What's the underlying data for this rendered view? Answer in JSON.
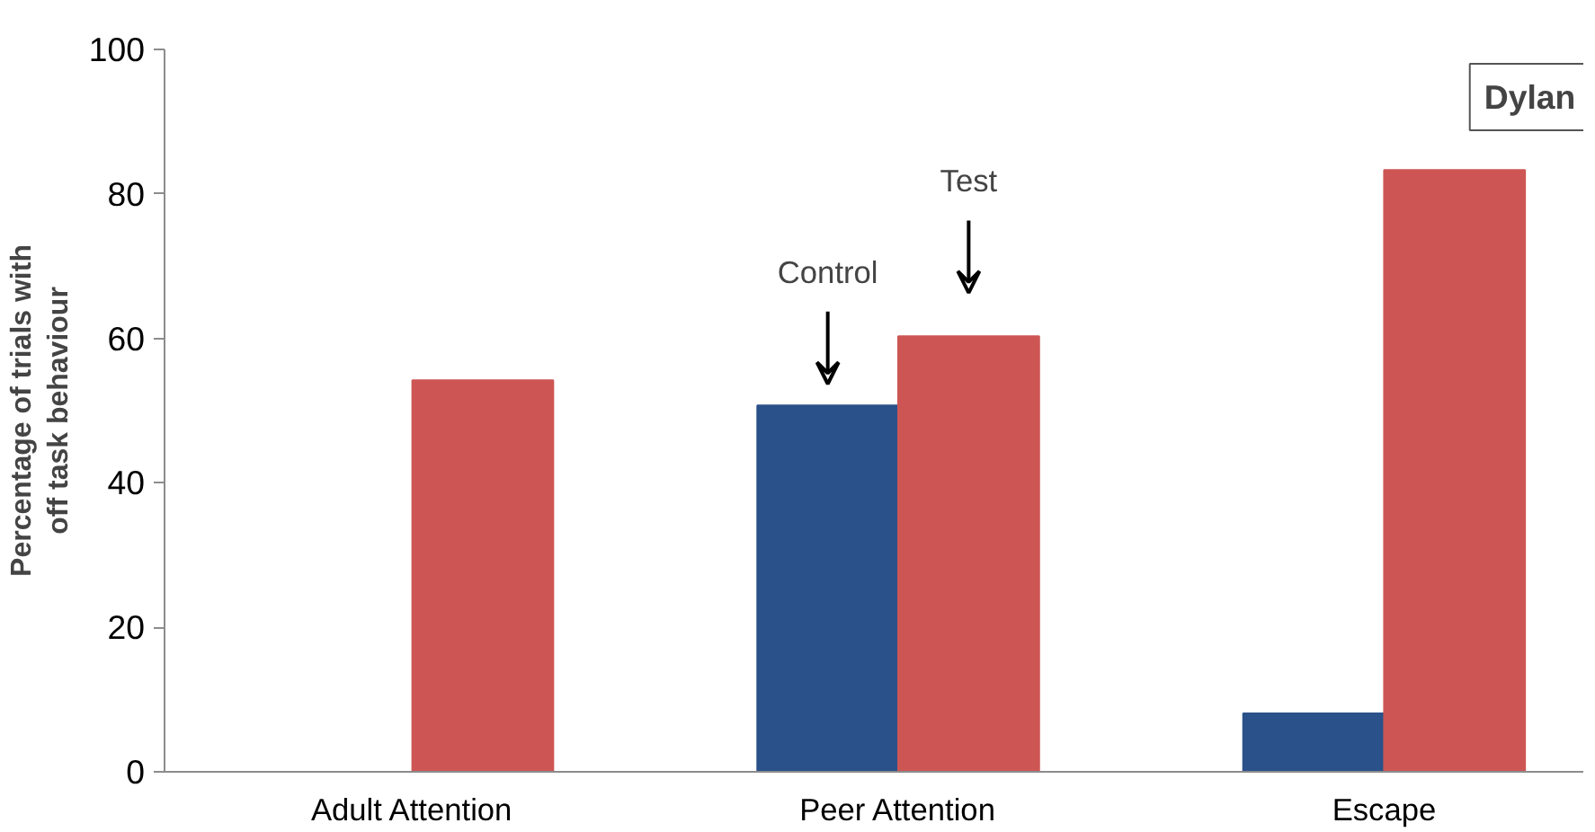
{
  "chart_data": {
    "type": "bar",
    "ylabel": "Percentage of trials with\noff task behaviour",
    "categories": [
      "Adult Attention",
      "Peer Attention",
      "Escape"
    ],
    "series": [
      {
        "color": "#2a5189",
        "values": [
          null,
          50.7,
          8.1
        ]
      },
      {
        "color": "#cd5654",
        "values": [
          54.2,
          60.3,
          83.3
        ]
      }
    ],
    "ylim": [
      0,
      100
    ],
    "yticks": [
      0,
      20,
      40,
      60,
      80,
      100
    ],
    "grid": false,
    "annotations": [
      "Control",
      "Test",
      "Dylan"
    ]
  }
}
